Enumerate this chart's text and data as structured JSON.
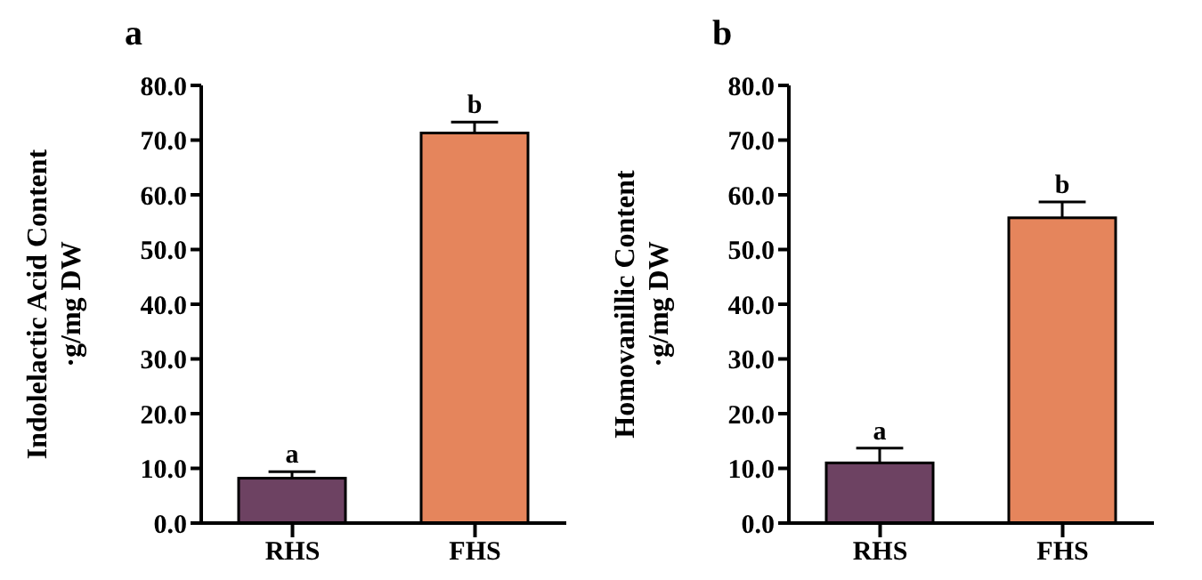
{
  "chart_data": [
    {
      "type": "bar",
      "title": "a",
      "ylabel": "Indolelactic Acid Content\n·g/mg DW",
      "categories": [
        "RHS",
        "FHS"
      ],
      "values": [
        8.2,
        71.3
      ],
      "errors": [
        1.2,
        2.0
      ],
      "colors": [
        "#6d4262",
        "#e5855c"
      ],
      "ylim": [
        0,
        80
      ],
      "yticks": [
        {
          "value": 0,
          "label": "0.0"
        },
        {
          "value": 10,
          "label": "10.0"
        },
        {
          "value": 20,
          "label": "20.0"
        },
        {
          "value": 30,
          "label": "30.0"
        },
        {
          "value": 40,
          "label": "40.0"
        },
        {
          "value": 50,
          "label": "50.0"
        },
        {
          "value": 60,
          "label": "60.0"
        },
        {
          "value": 70,
          "label": "70.0"
        },
        {
          "value": 80,
          "label": "80.0"
        }
      ],
      "grid": false,
      "legend": false,
      "annotations": [
        {
          "text": "a",
          "x": "RHS",
          "y": 9.4
        },
        {
          "text": "b",
          "x": "FHS",
          "y": 73.3
        }
      ]
    },
    {
      "type": "bar",
      "title": "b",
      "ylabel": "Homovanillic Content\n·g/mg DW",
      "categories": [
        "RHS",
        "FHS"
      ],
      "values": [
        11.0,
        55.8
      ],
      "errors": [
        2.7,
        2.9
      ],
      "colors": [
        "#6d4262",
        "#e5855c"
      ],
      "ylim": [
        0,
        80
      ],
      "yticks": [
        {
          "value": 0,
          "label": "0.0"
        },
        {
          "value": 10,
          "label": "10.0"
        },
        {
          "value": 20,
          "label": "20.0"
        },
        {
          "value": 30,
          "label": "30.0"
        },
        {
          "value": 40,
          "label": "40.0"
        },
        {
          "value": 50,
          "label": "50.0"
        },
        {
          "value": 60,
          "label": "60.0"
        },
        {
          "value": 70,
          "label": "70.0"
        },
        {
          "value": 80,
          "label": "80.0"
        }
      ],
      "grid": false,
      "legend": false,
      "annotations": [
        {
          "text": "a",
          "x": "RHS",
          "y": 13.7
        },
        {
          "text": "b",
          "x": "FHS",
          "y": 58.7
        }
      ]
    }
  ]
}
